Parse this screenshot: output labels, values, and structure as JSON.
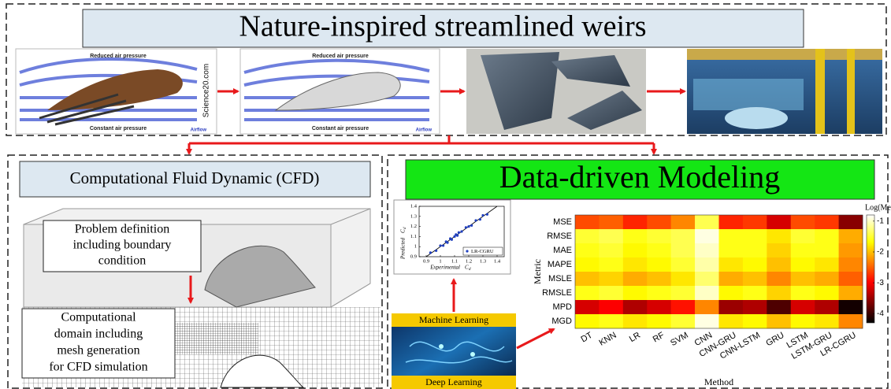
{
  "header": {
    "title": "Nature-inspired streamlined weirs"
  },
  "images": [
    {
      "top_label": "Reduced air pressure",
      "bottom_label": "Constant air pressure",
      "corner_label": "Airflow",
      "watermark": "Science20.com"
    },
    {
      "top_label": "Reduced air pressure",
      "bottom_label": "Constant air pressure",
      "corner_label": "Airflow"
    }
  ],
  "cfd": {
    "title": "Computational Fluid Dynamic (CFD)",
    "steps": [
      {
        "lines": [
          "Problem definition",
          "including boundary",
          "condition"
        ]
      },
      {
        "lines": [
          "Computational",
          "domain including",
          "mesh generation",
          "for CFD simulation"
        ]
      }
    ]
  },
  "modeling": {
    "title": "Data-driven Modeling",
    "ml_image": {
      "top": "Machine Learning",
      "bottom": "Deep Learning"
    },
    "scatter": {
      "y_label": {
        "text": "Predicted",
        "symbol": "C",
        "sub": "d"
      },
      "x_label": {
        "text": "Experimental",
        "symbol": "C",
        "sub": "d"
      },
      "legend": "LR-CGRU",
      "color": "#1f3fbf",
      "xlim": [
        0.85,
        1.45
      ],
      "ylim": [
        0.9,
        1.4
      ],
      "xticks": [
        0.9,
        1,
        1.1,
        1.2,
        1.3,
        1.4
      ],
      "yticks": [
        0.9,
        1,
        1.1,
        1.2,
        1.3,
        1.4
      ],
      "x": [
        0.93,
        0.97,
        1.0,
        1.02,
        1.04,
        1.05,
        1.07,
        1.08,
        1.1,
        1.11,
        1.12,
        1.13,
        1.15,
        1.18,
        1.2,
        1.22,
        1.25,
        1.28,
        1.3,
        1.33
      ],
      "y": [
        0.94,
        0.96,
        1.01,
        1.01,
        1.05,
        1.04,
        1.08,
        1.07,
        1.1,
        1.12,
        1.11,
        1.14,
        1.15,
        1.19,
        1.2,
        1.21,
        1.26,
        1.27,
        1.31,
        1.32
      ]
    },
    "heatmap": {
      "y_label": "Metric",
      "x_label": "Method",
      "colorbar_label": "Log(Metric)",
      "rows": [
        "MSE",
        "RMSE",
        "MAE",
        "MAPE",
        "MSLE",
        "RMSLE",
        "MPD",
        "MGD"
      ],
      "columns": [
        "DT",
        "KNN",
        "LR",
        "RF",
        "SVM",
        "CNN",
        "CNN-GRU",
        "CNN-LSTM",
        "GRU",
        "LSTM",
        "LSTM-GRU",
        "LR-CGRU"
      ],
      "clim": [
        -4.3,
        -0.8
      ],
      "cticks": [
        -1,
        -2,
        -3,
        -4
      ],
      "values": [
        [
          -2.6,
          -2.5,
          -2.8,
          -2.6,
          -2.3,
          -1.4,
          -2.8,
          -2.7,
          -3.2,
          -2.6,
          -2.7,
          -3.6
        ],
        [
          -1.5,
          -1.4,
          -1.6,
          -1.5,
          -1.4,
          -0.9,
          -1.6,
          -1.6,
          -1.8,
          -1.5,
          -1.6,
          -2.1
        ],
        [
          -1.6,
          -1.5,
          -1.7,
          -1.6,
          -1.4,
          -1.0,
          -1.6,
          -1.6,
          -1.9,
          -1.6,
          -1.6,
          -2.2
        ],
        [
          -1.7,
          -1.6,
          -1.8,
          -1.7,
          -1.5,
          -1.1,
          -1.8,
          -1.7,
          -2.0,
          -1.7,
          -1.8,
          -2.3
        ],
        [
          -2.0,
          -1.9,
          -2.1,
          -2.0,
          -1.8,
          -1.3,
          -2.1,
          -2.0,
          -2.3,
          -2.0,
          -2.1,
          -2.5
        ],
        [
          -1.6,
          -1.5,
          -1.7,
          -1.6,
          -1.5,
          -1.0,
          -1.7,
          -1.6,
          -1.9,
          -1.6,
          -1.7,
          -2.1
        ],
        [
          -3.2,
          -3.0,
          -3.4,
          -3.2,
          -2.9,
          -2.3,
          -3.5,
          -3.4,
          -3.9,
          -3.2,
          -3.4,
          -4.2
        ],
        [
          -1.7,
          -1.6,
          -1.8,
          -1.7,
          -1.5,
          -0.9,
          -1.8,
          -1.7,
          -2.0,
          -1.7,
          -1.8,
          -2.3
        ]
      ]
    }
  }
}
